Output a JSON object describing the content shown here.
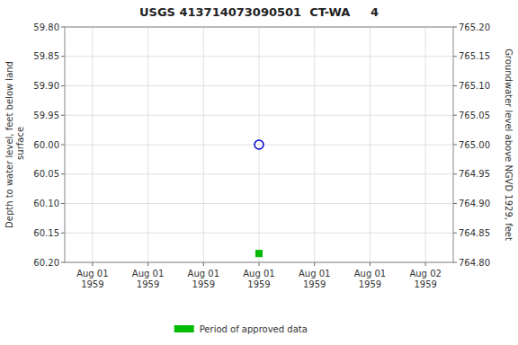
{
  "chart_data": {
    "type": "scatter",
    "title": "USGS 413714073090501  CT-WA     4",
    "y_label": "Depth to water level, feet below land\n surface",
    "y2_label": "Groundwater level above NGVD 1929, feet",
    "categories": [
      "Aug 01\n1959",
      "Aug 01\n1959",
      "Aug 01\n1959",
      "Aug 01\n1959",
      "Aug 01\n1959",
      "Aug 01\n1959",
      "Aug 02\n1959"
    ],
    "ylim": [
      60.2,
      59.8
    ],
    "yticks": [
      {
        "value": 59.8,
        "label": "59.80"
      },
      {
        "value": 59.85,
        "label": "59.85"
      },
      {
        "value": 59.9,
        "label": "59.90"
      },
      {
        "value": 59.95,
        "label": "59.95"
      },
      {
        "value": 60.0,
        "label": "60.00"
      },
      {
        "value": 60.05,
        "label": "60.05"
      },
      {
        "value": 60.1,
        "label": "60.10"
      },
      {
        "value": 60.15,
        "label": "60.15"
      },
      {
        "value": 60.2,
        "label": "60.20"
      }
    ],
    "y2lim": [
      764.8,
      765.2
    ],
    "y2ticks": [
      {
        "value": 765.2,
        "label": "765.20"
      },
      {
        "value": 765.15,
        "label": "765.15"
      },
      {
        "value": 765.1,
        "label": "765.10"
      },
      {
        "value": 765.05,
        "label": "765.05"
      },
      {
        "value": 765.0,
        "label": "765.00"
      },
      {
        "value": 764.95,
        "label": "764.95"
      },
      {
        "value": 764.9,
        "label": "764.90"
      },
      {
        "value": 764.85,
        "label": "764.85"
      },
      {
        "value": 764.8,
        "label": "764.80"
      }
    ],
    "grid": true,
    "legend": "bottom",
    "series": [
      {
        "color": "#0000cc",
        "marker": "open-circle",
        "values": [
          null,
          null,
          null,
          60.0,
          null,
          null,
          null
        ]
      },
      {
        "name": "Period of approved data",
        "color": "#00bb00",
        "marker": "square",
        "values": [
          null,
          null,
          null,
          60.185,
          null,
          null,
          null
        ]
      }
    ]
  }
}
